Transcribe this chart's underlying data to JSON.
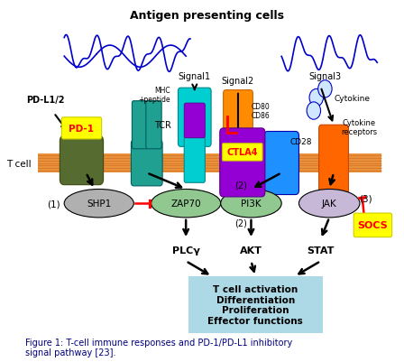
{
  "title": "Figure 1: T-cell immune responses and PD-1/PD-L1 inhibitory\nsignal pathway [23].",
  "background_color": "#ffffff",
  "membrane_color": "#e8913a",
  "apc_curve_color": "#0000cc",
  "output_box_color": "#add8e6",
  "shp1_color": "#b0b0b0",
  "zap70_color": "#90c890",
  "pi3k_color": "#90c890",
  "jak_color": "#c8b8d8",
  "tcr_color": "#00ced1",
  "mhc_color": "#00ced1",
  "purple_color": "#8B008B",
  "cd80_color": "#FF8C00",
  "cd28_color": "#1E90FF",
  "cytokine_receptor_color": "#FF6600",
  "pd1_receptor_color": "#556B2F",
  "ctla4_color": "#9400D3",
  "inhibitory_color": "#ff0000",
  "labels": {
    "apc": "Antigen presenting cells",
    "signal1": "Signal1",
    "signal2": "Signal2",
    "signal3": "Signal3",
    "mhc": "MHC\n+peptide",
    "cd80": "CD80\nCD86",
    "cd28": "CD28",
    "cytokine": "Cytokine",
    "cytokine_rec": "Cytokine\nreceptors",
    "pd_l1": "PD-L1/2",
    "pd1": "PD-1",
    "tcr": "TCR",
    "ctla4": "CTLA4",
    "shp1": "SHP1",
    "zap70": "ZAP70",
    "pi3k": "PI3K",
    "jak": "JAK",
    "socs": "SOCS",
    "plcy": "PLCγ",
    "akt": "AKT",
    "stat": "STAT",
    "output": "T cell activation\nDifferentiation\nProliferation\nEffector functions",
    "tcell": "T cell",
    "n1": "(1)",
    "n2": "(2)",
    "n3": "(3)"
  }
}
